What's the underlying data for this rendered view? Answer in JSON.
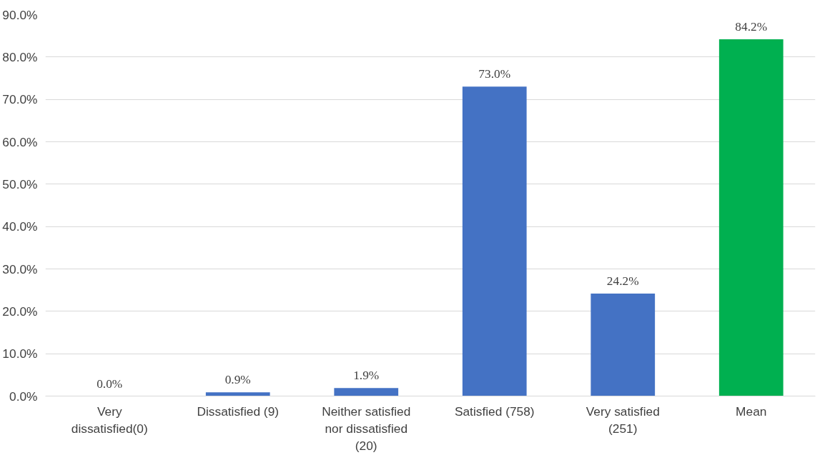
{
  "chart_data": {
    "type": "bar",
    "categories": [
      "Very dissatisfied(0)",
      "Dissatisfied (9)",
      "Neither satisfied nor dissatisfied (20)",
      "Satisfied (758)",
      "Very satisfied (251)",
      "Mean"
    ],
    "values": [
      0.0,
      0.9,
      1.9,
      73.0,
      24.2,
      84.2
    ],
    "colors": [
      "#4472c4",
      "#4472c4",
      "#4472c4",
      "#4472c4",
      "#4472c4",
      "#00b050"
    ],
    "value_labels": [
      "0.0%",
      "0.9%",
      "1.9%",
      "73.0%",
      "24.2%",
      "84.2%"
    ],
    "ylim": [
      0,
      90
    ],
    "yticks": [
      {
        "value": 0,
        "label": "0.0%"
      },
      {
        "value": 10,
        "label": "10.0%"
      },
      {
        "value": 20,
        "label": "20.0%"
      },
      {
        "value": 30,
        "label": "30.0%"
      },
      {
        "value": 40,
        "label": "40.0%"
      },
      {
        "value": 50,
        "label": "50.0%"
      },
      {
        "value": 60,
        "label": "60.0%"
      },
      {
        "value": 70,
        "label": "70.0%"
      },
      {
        "value": 80,
        "label": "80.0%"
      },
      {
        "value": 90,
        "label": "90.0%"
      }
    ],
    "grid": "y"
  }
}
